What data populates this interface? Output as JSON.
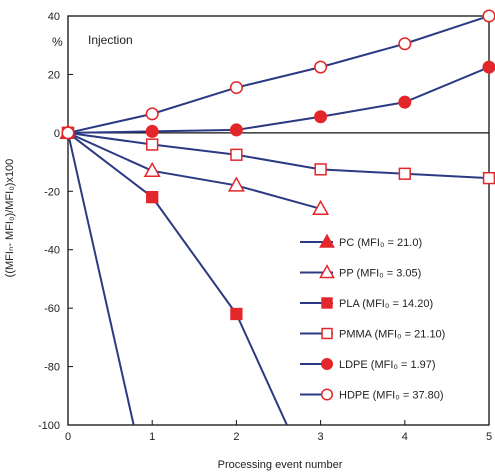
{
  "chart_data": {
    "type": "line",
    "annotation": "Injection",
    "y_unit_label": "%",
    "xlabel": "Processing event number",
    "ylabel": "((MFIₙ- MFI₀)/MFI₀)x100",
    "xlim": [
      0,
      5
    ],
    "ylim": [
      -100,
      40
    ],
    "x_ticks": [
      0,
      1,
      2,
      3,
      4,
      5
    ],
    "y_ticks": [
      40,
      20,
      0,
      -20,
      -40,
      -60,
      -80,
      -100
    ],
    "grid": false,
    "legend_position": "bottom-right",
    "line_color": "#2b3a82",
    "marker_color": "#e3262a",
    "series": [
      {
        "name": "PC (MFI₀ = 21.0)",
        "marker": "triangle",
        "filled": true,
        "x": [
          0,
          0.78
        ],
        "y": [
          0,
          -100
        ]
      },
      {
        "name": "PP (MFI₀ = 3.05)",
        "marker": "triangle",
        "filled": false,
        "x": [
          0,
          1,
          2,
          3
        ],
        "y": [
          0,
          -13,
          -18,
          -26
        ]
      },
      {
        "name": "PLA (MFI₀ = 14.20)",
        "marker": "square",
        "filled": true,
        "x": [
          0,
          1,
          2,
          2.6
        ],
        "y": [
          0,
          -22,
          -62,
          -100
        ]
      },
      {
        "name": "PMMA (MFI₀ = 21.10)",
        "marker": "square",
        "filled": false,
        "x": [
          0,
          1,
          2,
          3,
          4,
          5
        ],
        "y": [
          0,
          -4,
          -7.5,
          -12.5,
          -14,
          -15.5
        ]
      },
      {
        "name": "LDPE (MFI₀ = 1.97)",
        "marker": "circle",
        "filled": true,
        "x": [
          0,
          1,
          2,
          3,
          4,
          5
        ],
        "y": [
          0,
          0.5,
          1,
          5.5,
          10.5,
          22.5
        ]
      },
      {
        "name": "HDPE (MFI₀ = 37.80)",
        "marker": "circle",
        "filled": false,
        "x": [
          0,
          1,
          2,
          3,
          4,
          5
        ],
        "y": [
          0,
          6.5,
          15.5,
          22.5,
          30.5,
          40
        ]
      }
    ]
  }
}
